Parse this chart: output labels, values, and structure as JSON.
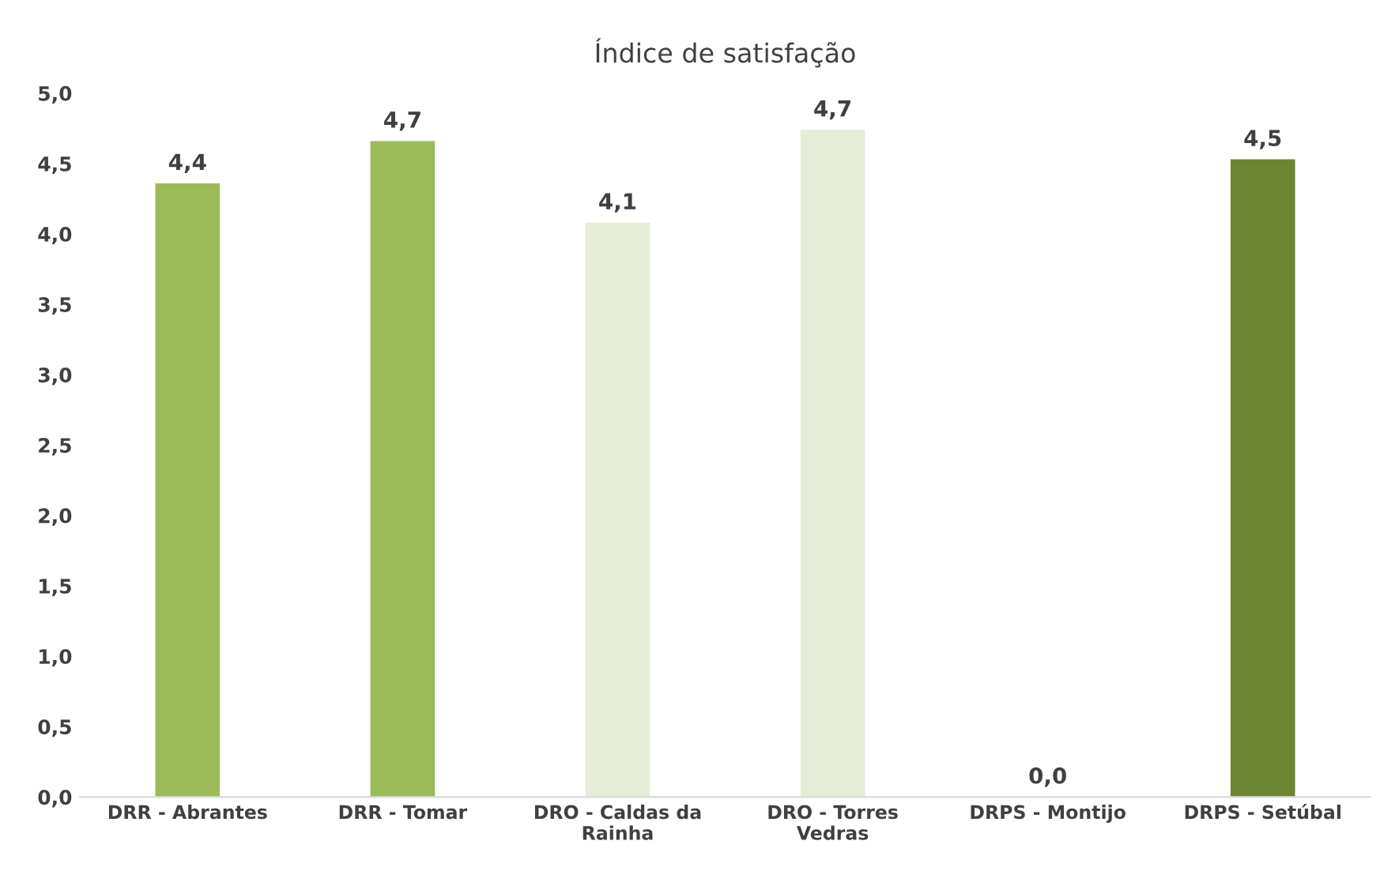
{
  "chart_data": {
    "type": "bar",
    "title": "Índice de satisfação",
    "categories": [
      "DRR - Abrantes",
      "DRR - Tomar",
      "DRO - Caldas da\nRainha",
      "DRO - Torres\nVedras",
      "DRPS - Montijo",
      "DRPS - Setúbal"
    ],
    "values": [
      4.36,
      4.66,
      4.08,
      4.74,
      0,
      4.53
    ],
    "value_labels": [
      "4,4",
      "4,7",
      "4,1",
      "4,7",
      "0,0",
      "4,5"
    ],
    "colors": [
      "#9bbb59",
      "#9bbb59",
      "#e6edd6",
      "#e6edd6",
      "#e6edd6",
      "#6b8533"
    ],
    "ylim": [
      0,
      5
    ],
    "yticks": [
      {
        "value": 0,
        "label": "0,0"
      },
      {
        "value": 0.5,
        "label": "0,5"
      },
      {
        "value": 1,
        "label": "1,0"
      },
      {
        "value": 1.5,
        "label": "1,5"
      },
      {
        "value": 2,
        "label": "2,0"
      },
      {
        "value": 2.5,
        "label": "2,5"
      },
      {
        "value": 3,
        "label": "3,0"
      },
      {
        "value": 3.5,
        "label": "3,5"
      },
      {
        "value": 4,
        "label": "4,0"
      },
      {
        "value": 4.5,
        "label": "4,5"
      },
      {
        "value": 5,
        "label": "5,0"
      }
    ],
    "grid": false
  }
}
